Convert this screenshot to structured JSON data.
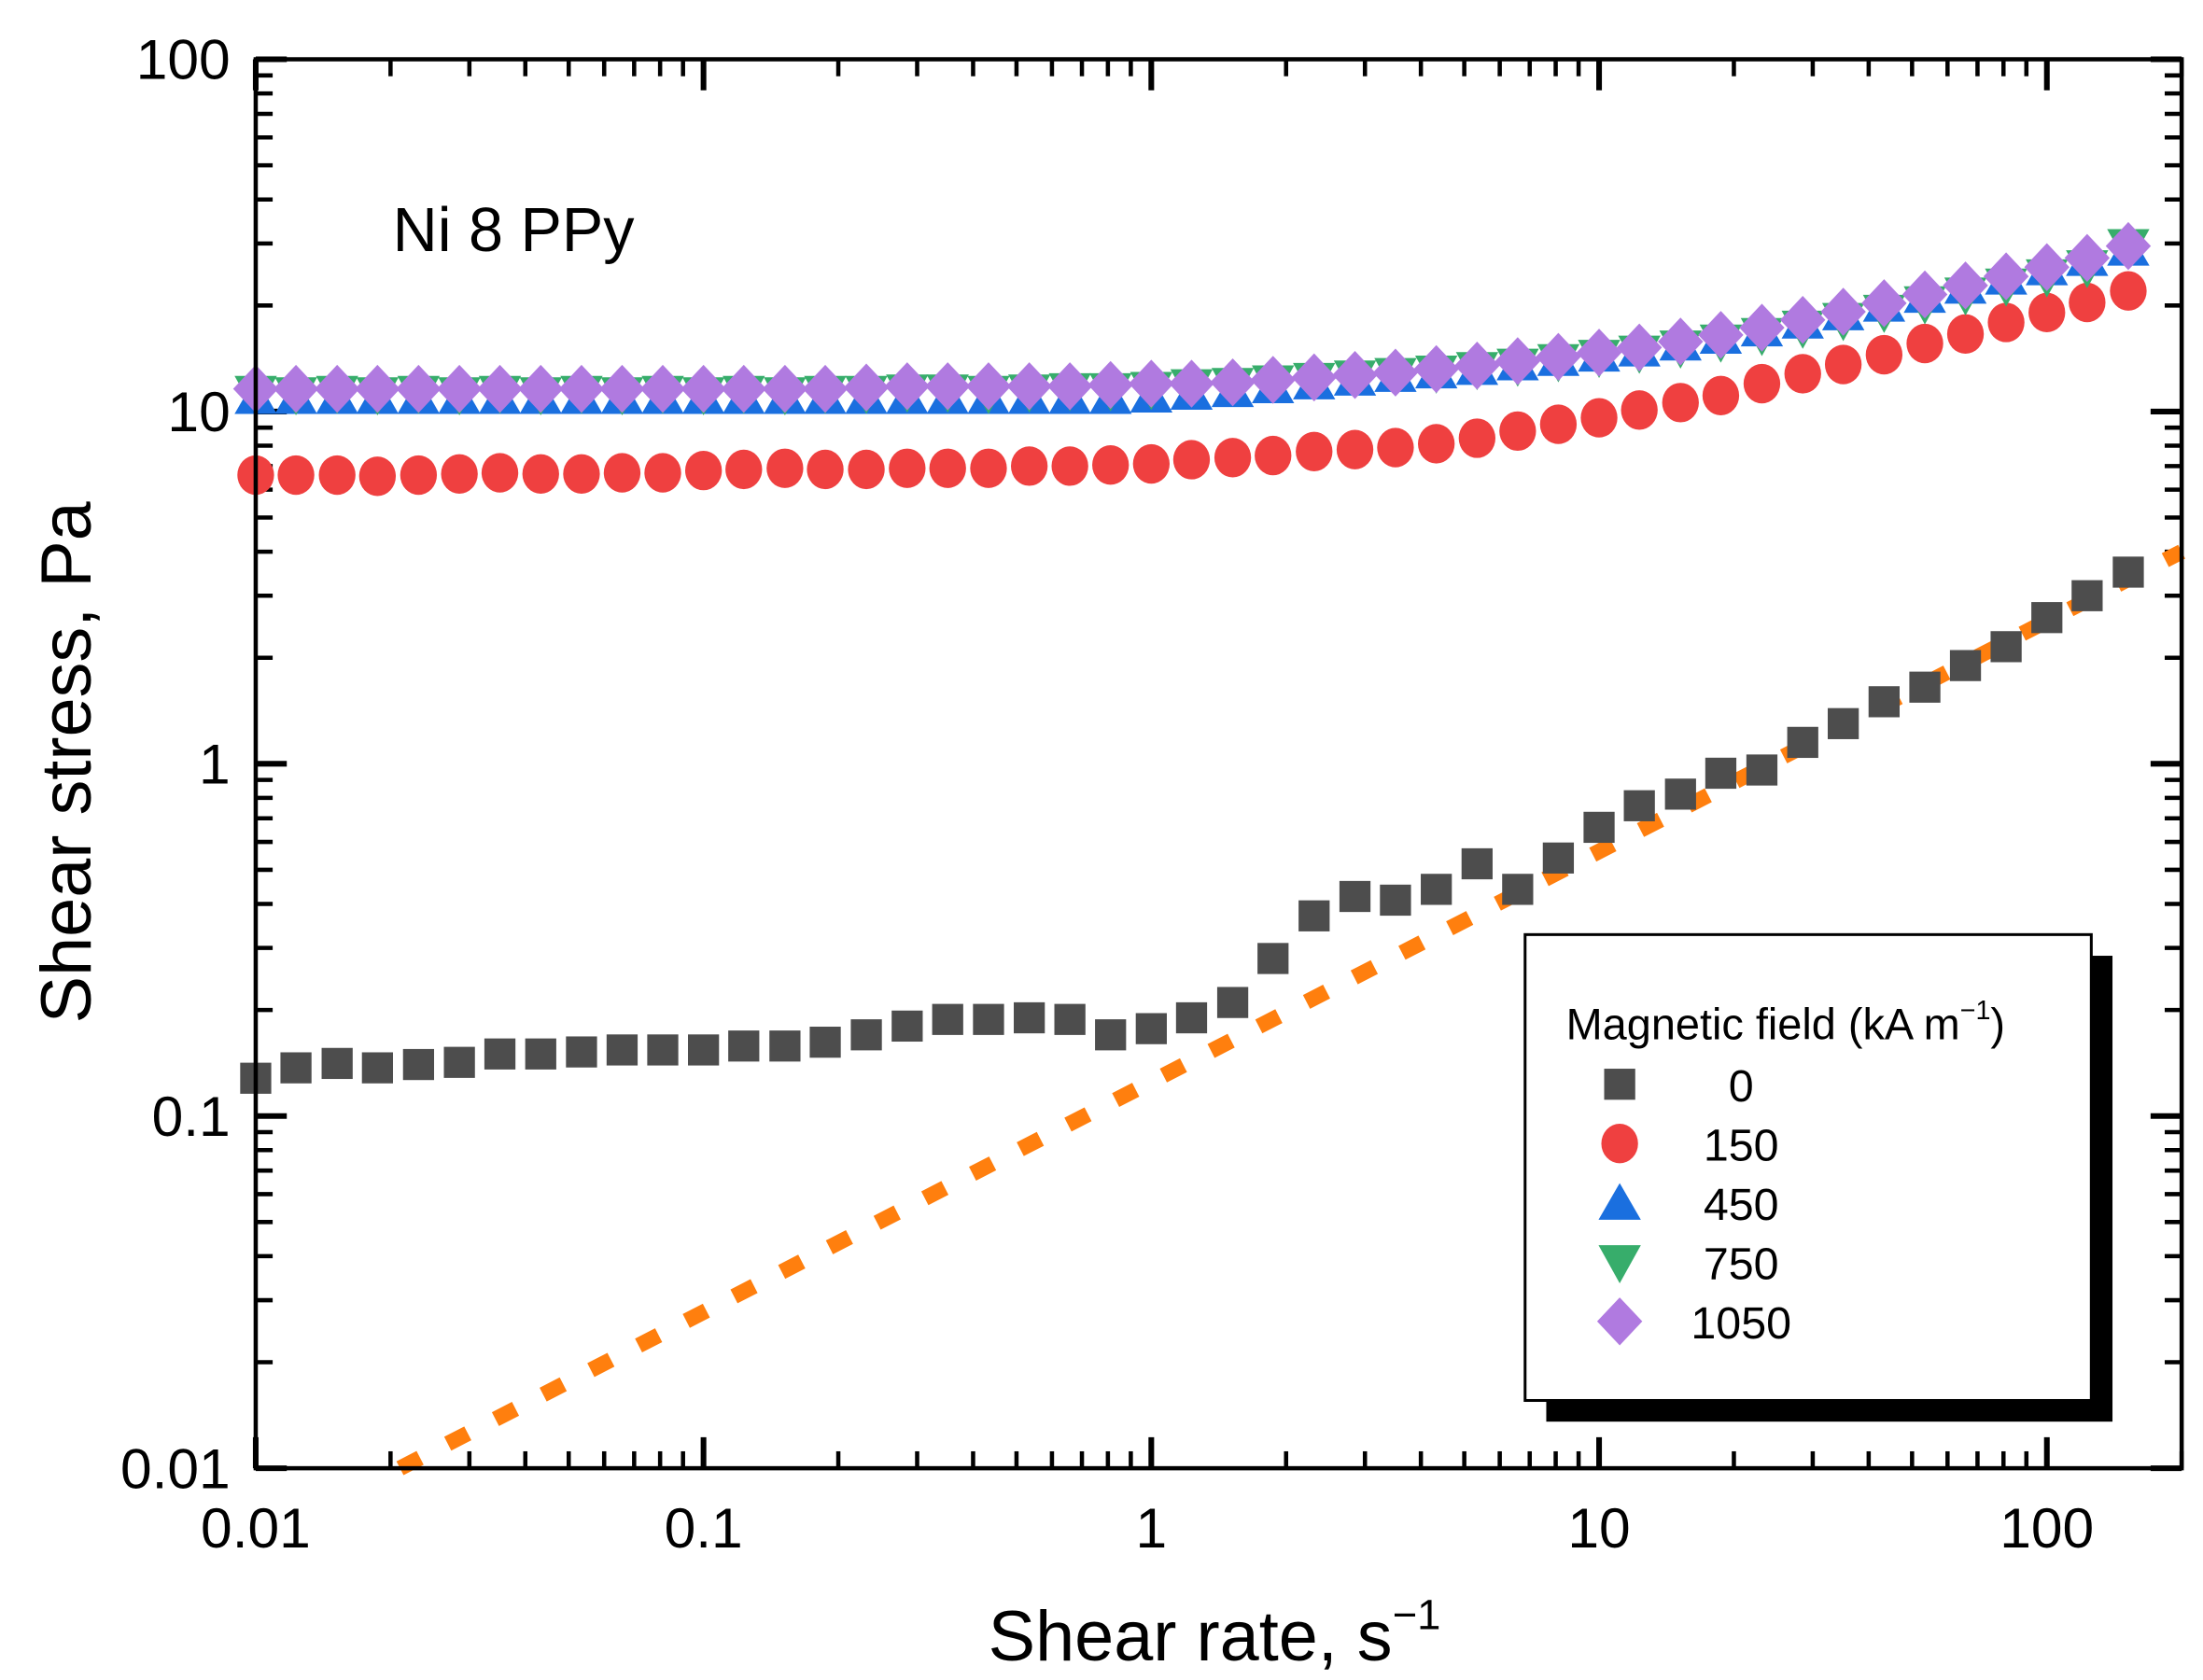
{
  "chart_data": {
    "type": "scatter",
    "annotation": "Ni 8 PPy",
    "xlabel": "Shear rate, s",
    "xlabel_sup": "−1",
    "ylabel": "Shear stress, Pa",
    "xscale": "log",
    "yscale": "log",
    "xlim": [
      0.01,
      200
    ],
    "ylim": [
      0.01,
      100
    ],
    "xticks": [
      0.01,
      0.1,
      1,
      10,
      100
    ],
    "xtick_labels": [
      "0.01",
      "0.1",
      "1",
      "10",
      "100"
    ],
    "yticks": [
      0.01,
      0.1,
      1,
      10,
      100
    ],
    "ytick_labels": [
      "0.01",
      "0.1",
      "1",
      "10",
      "100"
    ],
    "grid": false,
    "legend": {
      "title": "Magnetic field (kA m",
      "title_sup": "−1",
      "title_end": ")",
      "placement": "bottom-right"
    },
    "x": [
      0.01,
      0.0123,
      0.0152,
      0.0187,
      0.0231,
      0.0285,
      0.0351,
      0.0433,
      0.0534,
      0.0658,
      0.0811,
      0.1,
      0.123,
      0.152,
      0.187,
      0.231,
      0.285,
      0.351,
      0.433,
      0.534,
      0.658,
      0.811,
      1.0,
      1.23,
      1.52,
      1.87,
      2.31,
      2.85,
      3.51,
      4.33,
      5.34,
      6.58,
      8.11,
      10,
      12.3,
      15.2,
      18.7,
      23.1,
      28.5,
      35.1,
      43.3,
      53.4,
      65.8,
      81.1,
      100,
      123,
      152
    ],
    "series": [
      {
        "name": "0",
        "marker": "square",
        "color": "#4d4d4d",
        "values": [
          0.128,
          0.137,
          0.141,
          0.137,
          0.14,
          0.142,
          0.15,
          0.15,
          0.152,
          0.154,
          0.154,
          0.154,
          0.158,
          0.158,
          0.162,
          0.17,
          0.18,
          0.188,
          0.188,
          0.19,
          0.188,
          0.17,
          0.177,
          0.19,
          0.21,
          0.28,
          0.37,
          0.42,
          0.41,
          0.44,
          0.52,
          0.44,
          0.54,
          0.66,
          0.76,
          0.82,
          0.94,
          0.96,
          1.15,
          1.3,
          1.5,
          1.65,
          1.9,
          2.15,
          2.6,
          3.0,
          3.5
        ]
      },
      {
        "name": "150",
        "marker": "circle",
        "color": "#ef4040",
        "values": [
          6.6,
          6.6,
          6.6,
          6.55,
          6.6,
          6.65,
          6.7,
          6.65,
          6.65,
          6.7,
          6.7,
          6.8,
          6.85,
          6.9,
          6.85,
          6.85,
          6.9,
          6.9,
          6.9,
          7.0,
          7.0,
          7.05,
          7.1,
          7.3,
          7.4,
          7.5,
          7.7,
          7.8,
          7.9,
          8.1,
          8.4,
          8.8,
          9.2,
          9.6,
          10.1,
          10.6,
          11.1,
          12.0,
          12.8,
          13.6,
          14.5,
          15.6,
          16.6,
          17.9,
          19.1,
          20.4,
          22.0
        ]
      },
      {
        "name": "450",
        "marker": "triangle-up",
        "color": "#1a6fdf",
        "values": [
          11.0,
          11.0,
          11.0,
          11.0,
          11.0,
          11.0,
          11.0,
          11.0,
          11.0,
          11.0,
          11.0,
          11.0,
          11.0,
          11.0,
          11.0,
          11.0,
          11.0,
          11.0,
          11.0,
          11.0,
          11.0,
          11.0,
          11.1,
          11.3,
          11.5,
          11.8,
          12.1,
          12.4,
          12.7,
          13.0,
          13.3,
          13.7,
          14.1,
          14.5,
          15.0,
          15.6,
          16.3,
          17.1,
          18.0,
          19.0,
          20.1,
          21.3,
          22.6,
          24.0,
          25.5,
          27.1,
          29.0
        ]
      },
      {
        "name": "750",
        "marker": "triangle-down",
        "color": "#37ad6b",
        "values": [
          11.3,
          11.2,
          11.3,
          11.2,
          11.3,
          11.2,
          11.3,
          11.2,
          11.3,
          11.2,
          11.3,
          11.2,
          11.3,
          11.2,
          11.3,
          11.3,
          11.4,
          11.4,
          11.3,
          11.4,
          11.5,
          11.5,
          11.6,
          11.8,
          11.9,
          12.1,
          12.3,
          12.5,
          12.7,
          12.9,
          13.2,
          13.5,
          13.9,
          14.3,
          14.7,
          15.2,
          15.8,
          16.5,
          17.3,
          18.2,
          19.2,
          20.3,
          21.5,
          22.8,
          24.2,
          25.7,
          29.5
        ]
      },
      {
        "name": "1050",
        "marker": "diamond",
        "color": "#b07ae0",
        "values": [
          11.6,
          11.6,
          11.6,
          11.6,
          11.6,
          11.6,
          11.6,
          11.6,
          11.6,
          11.6,
          11.6,
          11.6,
          11.6,
          11.6,
          11.6,
          11.7,
          11.8,
          11.8,
          11.8,
          11.8,
          11.8,
          11.9,
          12.0,
          12.0,
          12.1,
          12.3,
          12.5,
          12.7,
          12.9,
          13.2,
          13.5,
          13.9,
          14.3,
          14.7,
          15.2,
          15.8,
          16.5,
          17.3,
          18.2,
          19.2,
          20.3,
          21.5,
          22.8,
          24.2,
          25.7,
          27.3,
          29.5
        ]
      }
    ],
    "fit_line": {
      "style": "dotted",
      "color": "#ff7f0e",
      "x": [
        0.021,
        200
      ],
      "y": [
        0.01,
        4.0
      ]
    }
  }
}
